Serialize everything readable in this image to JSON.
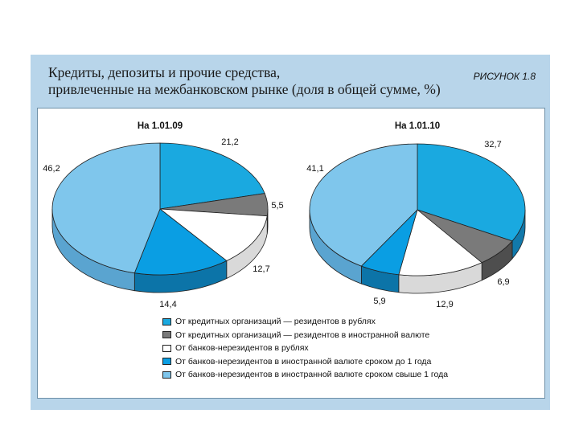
{
  "header": {
    "title_line1": "Кредиты, депозиты и прочие средства,",
    "title_line2": "привлеченные на межбанковском рынке (доля в общей сумме, %)",
    "figure_label": "РИСУНОК 1.8"
  },
  "chart_data": [
    {
      "type": "pie",
      "title": "На 1.01.09",
      "values": [
        21.2,
        5.5,
        12.7,
        14.4,
        46.2
      ],
      "labels": [
        "21,2",
        "5,5",
        "12,7",
        "14,4",
        "46,2"
      ]
    },
    {
      "type": "pie",
      "title": "На 1.01.10",
      "values": [
        32.7,
        6.9,
        12.9,
        5.9,
        41.1
      ],
      "labels": [
        "32,7",
        "6,9",
        "12,9",
        "5,9",
        "41,1"
      ]
    }
  ],
  "legend": [
    {
      "label": "От кредитных организаций — резидентов в рублях",
      "color": "#1aa9e0"
    },
    {
      "label": "От кредитных организаций — резидентов в иностранной валюте",
      "color": "#7a7a7a"
    },
    {
      "label": "От банков-нерезидентов в рублях",
      "color": "#ffffff"
    },
    {
      "label": "От банков-нерезидентов в иностранной валюте сроком до 1 года",
      "color": "#0a9ee3"
    },
    {
      "label": "От банков-нерезидентов в иностранной валюте сроком свыше 1 года",
      "color": "#7fc6ec"
    }
  ]
}
